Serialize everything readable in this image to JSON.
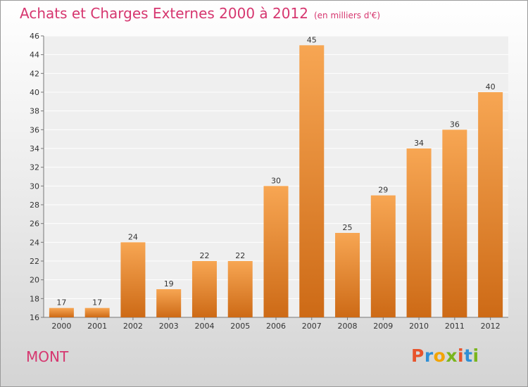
{
  "title": {
    "main": "Achats et Charges Externes 2000 à 2012",
    "unit": "(en milliers d'€)"
  },
  "footer": {
    "commune": "MONT",
    "logo_letters": [
      "P",
      "r",
      "o",
      "x",
      "i",
      "t",
      "i"
    ],
    "logo_colors": [
      "#e8542c",
      "#2f8fd6",
      "#f2a400",
      "#7ab51d",
      "#e8542c",
      "#2f8fd6",
      "#7ab51d"
    ]
  },
  "colors": {
    "accent": "#d6366f",
    "bar_top": "#f7a653",
    "bar_bottom": "#cd6a16"
  },
  "chart_data": {
    "type": "bar",
    "categories": [
      "2000",
      "2001",
      "2002",
      "2003",
      "2004",
      "2005",
      "2006",
      "2007",
      "2008",
      "2009",
      "2010",
      "2011",
      "2012"
    ],
    "values": [
      17,
      17,
      24,
      19,
      22,
      22,
      30,
      45,
      25,
      29,
      34,
      36,
      40
    ],
    "ylim": [
      16,
      46
    ],
    "yticks": [
      16,
      18,
      20,
      22,
      24,
      26,
      28,
      30,
      32,
      34,
      36,
      38,
      40,
      42,
      44,
      46
    ],
    "grid": true
  }
}
